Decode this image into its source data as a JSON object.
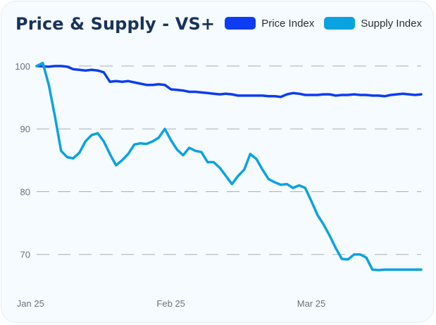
{
  "title": "Price & Supply - VS+",
  "colors": {
    "price": "#0d3cf2",
    "supply": "#0ba2e0",
    "grid": "#a9aeb5",
    "tick": "#6b7280"
  },
  "chart_data": {
    "type": "line",
    "title": "Price & Supply - VS+",
    "xlabel": "",
    "ylabel": "",
    "ylim": [
      62.8,
      103.8
    ],
    "y_ticks": [
      100,
      90,
      80,
      70
    ],
    "x_range": [
      0,
      63
    ],
    "x_tick_labels": [
      {
        "label": "Jan 25",
        "x": -1
      },
      {
        "label": "Feb 25",
        "x": 22
      },
      {
        "label": "Mar 25",
        "x": 45
      }
    ],
    "grid": "horizontal-dashed",
    "legend": "top-right",
    "series": [
      {
        "name": "Price Index",
        "color": "#0d3cf2",
        "x": [
          0,
          2,
          3,
          4,
          5,
          6,
          7,
          8,
          9,
          10,
          11,
          12,
          13,
          14,
          15,
          16,
          17,
          18,
          19,
          20,
          21,
          22,
          23,
          24,
          25,
          26,
          27,
          28,
          29,
          30,
          31,
          32,
          33,
          34,
          35,
          36,
          37,
          38,
          39,
          40,
          41,
          42,
          43,
          44,
          45,
          46,
          47,
          48,
          49,
          50,
          51,
          52,
          53,
          54,
          55,
          56,
          57,
          58,
          59,
          60,
          61,
          62,
          63
        ],
        "values": [
          100.0,
          99.9,
          100.0,
          100.0,
          99.9,
          99.5,
          99.4,
          99.3,
          99.4,
          99.3,
          99.0,
          97.5,
          97.6,
          97.5,
          97.6,
          97.4,
          97.2,
          97.0,
          97.0,
          97.1,
          97.0,
          96.3,
          96.2,
          96.1,
          95.9,
          95.9,
          95.8,
          95.7,
          95.6,
          95.5,
          95.6,
          95.5,
          95.3,
          95.3,
          95.3,
          95.3,
          95.3,
          95.2,
          95.2,
          95.1,
          95.5,
          95.7,
          95.6,
          95.4,
          95.4,
          95.4,
          95.5,
          95.5,
          95.3,
          95.4,
          95.4,
          95.5,
          95.4,
          95.4,
          95.3,
          95.3,
          95.2,
          95.4,
          95.5,
          95.6,
          95.5,
          95.4,
          95.5
        ]
      },
      {
        "name": "Supply Index",
        "color": "#0ba2e0",
        "x": [
          0,
          1,
          2,
          3,
          4,
          5,
          6,
          7,
          8,
          9,
          10,
          11,
          12,
          13,
          14,
          15,
          16,
          17,
          18,
          19,
          20,
          21,
          22,
          23,
          24,
          25,
          26,
          27,
          28,
          29,
          30,
          31,
          32,
          33,
          34,
          35,
          36,
          37,
          38,
          39,
          40,
          41,
          42,
          43,
          44,
          45,
          46,
          47,
          48,
          49,
          50,
          51,
          52,
          53,
          54,
          55,
          56,
          57,
          58,
          59,
          60,
          61,
          62,
          63
        ],
        "values": [
          100.0,
          100.5,
          97.0,
          92.0,
          86.5,
          85.5,
          85.3,
          86.2,
          88.0,
          89.0,
          89.3,
          88.0,
          86.0,
          84.2,
          85.0,
          86.0,
          87.5,
          87.7,
          87.6,
          88.0,
          88.6,
          90.0,
          88.2,
          86.7,
          85.8,
          87.0,
          86.5,
          86.3,
          84.7,
          84.7,
          83.8,
          82.5,
          81.2,
          82.5,
          83.5,
          86.0,
          85.2,
          83.5,
          82.0,
          81.5,
          81.1,
          81.2,
          80.6,
          81.0,
          80.6,
          78.5,
          76.3,
          74.8,
          73.0,
          71.0,
          69.3,
          69.2,
          70.0,
          70.0,
          69.5,
          67.6,
          67.5,
          67.6,
          67.6,
          67.6,
          67.6,
          67.6,
          67.6,
          67.6
        ]
      }
    ]
  },
  "legend_items": [
    {
      "label": "Price Index"
    },
    {
      "label": "Supply Index"
    }
  ]
}
